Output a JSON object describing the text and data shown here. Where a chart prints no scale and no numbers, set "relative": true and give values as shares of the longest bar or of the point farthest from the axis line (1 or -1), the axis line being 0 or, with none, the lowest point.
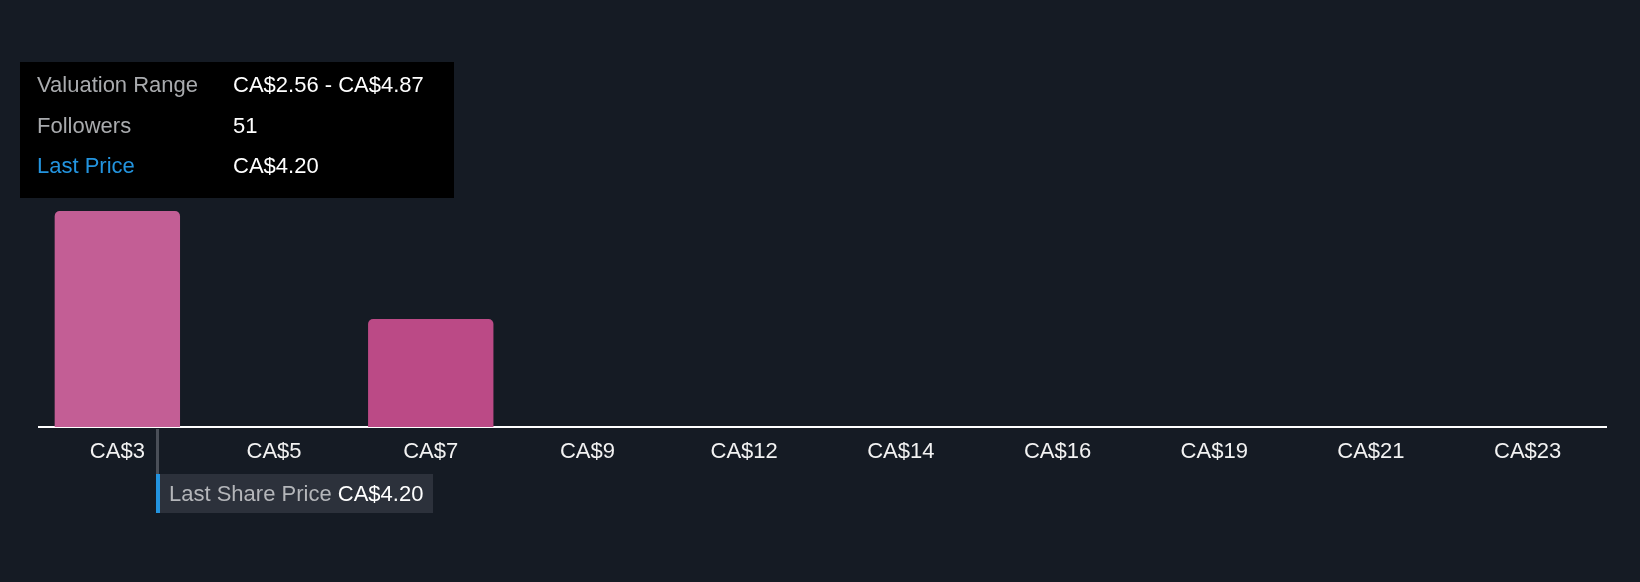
{
  "chart_data": {
    "type": "bar",
    "relative": true,
    "categories": [
      "CA$3",
      "CA$5",
      "CA$7",
      "CA$9",
      "CA$12",
      "CA$14",
      "CA$16",
      "CA$19",
      "CA$21",
      "CA$23"
    ],
    "values": [
      1,
      0,
      0.5,
      0,
      0,
      0,
      0,
      0,
      0,
      0
    ],
    "colors": [
      "#c35e95",
      "#bb4a86",
      "#bb4a86",
      "#bb4a86",
      "#bb4a86",
      "#bb4a86",
      "#bb4a86",
      "#bb4a86",
      "#bb4a86",
      "#bb4a86"
    ],
    "annotations": [
      "Valuation Range",
      "CA$2.56 - CA$4.87",
      "Followers",
      "51",
      "Last Price",
      "CA$4.20",
      "Last Share Price CA$4.20"
    ]
  }
}
